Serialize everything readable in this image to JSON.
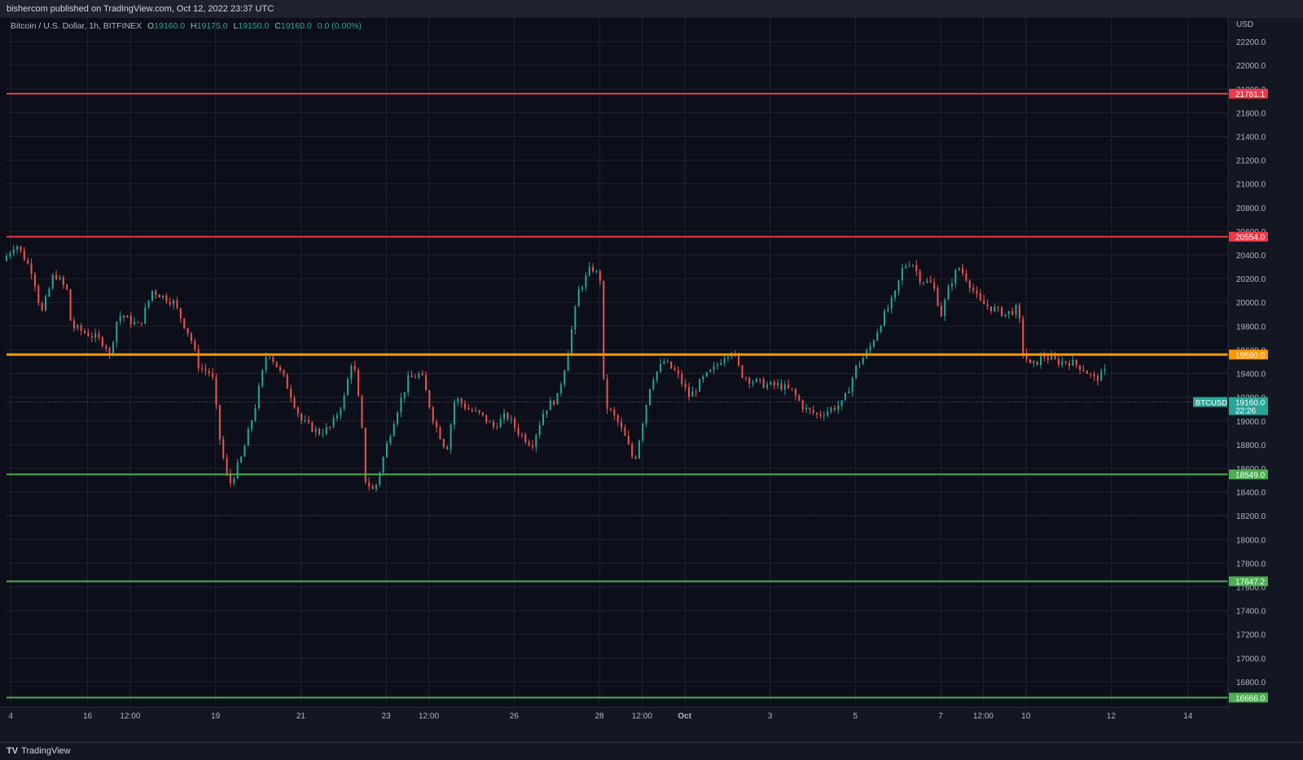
{
  "header": {
    "published": "bishercom published on TradingView.com, Oct 12, 2022 23:37 UTC"
  },
  "legend": {
    "symbol": "Bitcoin / U.S. Dollar, 1h, BITFINEX",
    "o_label": "O",
    "o_value": "19160.0",
    "h_label": "H",
    "h_value": "19175.0",
    "l_label": "L",
    "l_value": "19150.0",
    "c_label": "C",
    "c_value": "19160.0",
    "change": "0.0 (0.00%)"
  },
  "footer": {
    "brand": "TradingView",
    "logo": "TV"
  },
  "colors": {
    "background": "#131722",
    "grid": "#1f2330",
    "up": "#26a69a",
    "down": "#ef5350",
    "resistance": "#f23645",
    "pivot": "#ff9800",
    "support": "#4caf50",
    "last": "#26a69a"
  },
  "chart_data": {
    "type": "candlestick",
    "timeframe": "1h",
    "y_axis_unit": "USD",
    "ylim": [
      16600,
      22400
    ],
    "y_ticks": [
      16800,
      17000,
      17200,
      17400,
      17600,
      17800,
      18000,
      18200,
      18400,
      18600,
      18800,
      19000,
      19200,
      19400,
      19600,
      19800,
      20000,
      20200,
      20400,
      20600,
      20800,
      21000,
      21200,
      21400,
      21600,
      21800,
      22000,
      22200
    ],
    "x_ticks": [
      {
        "label": "4",
        "t": -0.2
      },
      {
        "label": "16",
        "t": 0.7
      },
      {
        "label": "12:00",
        "t": 1.2
      },
      {
        "label": "19",
        "t": 2.2
      },
      {
        "label": "21",
        "t": 3.2
      },
      {
        "label": "23",
        "t": 4.2
      },
      {
        "label": "12:00",
        "t": 4.7
      },
      {
        "label": "26",
        "t": 5.7
      },
      {
        "label": "28",
        "t": 6.7
      },
      {
        "label": "12:00",
        "t": 7.2
      },
      {
        "label": "Oct",
        "t": 7.7
      },
      {
        "label": "3",
        "t": 8.7
      },
      {
        "label": "5",
        "t": 9.7
      },
      {
        "label": "7",
        "t": 10.7
      },
      {
        "label": "12:00",
        "t": 11.2
      },
      {
        "label": "10",
        "t": 11.7
      },
      {
        "label": "12",
        "t": 12.7
      },
      {
        "label": "14",
        "t": 13.6
      }
    ],
    "x_domain": [
      -0.25,
      14.07
    ],
    "last_price": {
      "label": "BTCUSD",
      "price": 19160.0,
      "price_text": "19160.0",
      "countdown": "22:26",
      "t": 12.65
    },
    "horizontal_levels": [
      {
        "price": 21761.1,
        "text": "21761.1",
        "kind": "resistance"
      },
      {
        "price": 20554.0,
        "text": "20554.0",
        "kind": "resistance"
      },
      {
        "price": 19560.0,
        "text": "19560.0",
        "kind": "pivot"
      },
      {
        "price": 18549.0,
        "text": "18549.0",
        "kind": "support"
      },
      {
        "price": 17647.2,
        "text": "17647.2",
        "kind": "support"
      },
      {
        "price": 16666.0,
        "text": "16666.0",
        "kind": "support"
      }
    ],
    "dotted_levels": [
      18200
    ],
    "anchors": [
      [
        -0.25,
        20350
      ],
      [
        -0.1,
        20500
      ],
      [
        0.1,
        20250
      ],
      [
        0.2,
        19900
      ],
      [
        0.35,
        20250
      ],
      [
        0.5,
        20100
      ],
      [
        0.55,
        19800
      ],
      [
        0.7,
        19750
      ],
      [
        0.85,
        19700
      ],
      [
        0.95,
        19650
      ],
      [
        1.0,
        19550
      ],
      [
        1.1,
        19900
      ],
      [
        1.35,
        19800
      ],
      [
        1.5,
        20100
      ],
      [
        1.75,
        20000
      ],
      [
        1.95,
        19700
      ],
      [
        2.05,
        19450
      ],
      [
        2.2,
        19400
      ],
      [
        2.3,
        18800
      ],
      [
        2.4,
        18450
      ],
      [
        2.55,
        18700
      ],
      [
        2.7,
        19100
      ],
      [
        2.85,
        19600
      ],
      [
        3.05,
        19350
      ],
      [
        3.25,
        19000
      ],
      [
        3.45,
        18900
      ],
      [
        3.6,
        18950
      ],
      [
        3.75,
        19200
      ],
      [
        3.85,
        19550
      ],
      [
        3.95,
        19000
      ],
      [
        4.0,
        18500
      ],
      [
        4.1,
        18400
      ],
      [
        4.25,
        18800
      ],
      [
        4.35,
        19050
      ],
      [
        4.5,
        19350
      ],
      [
        4.65,
        19400
      ],
      [
        4.8,
        19000
      ],
      [
        4.95,
        18750
      ],
      [
        5.05,
        19200
      ],
      [
        5.2,
        19100
      ],
      [
        5.35,
        19050
      ],
      [
        5.5,
        18950
      ],
      [
        5.65,
        19050
      ],
      [
        5.8,
        18900
      ],
      [
        5.95,
        18800
      ],
      [
        6.1,
        19100
      ],
      [
        6.25,
        19200
      ],
      [
        6.35,
        19500
      ],
      [
        6.5,
        20100
      ],
      [
        6.65,
        20300
      ],
      [
        6.75,
        20200
      ],
      [
        6.8,
        19150
      ],
      [
        6.95,
        19000
      ],
      [
        7.05,
        18850
      ],
      [
        7.15,
        18650
      ],
      [
        7.25,
        19000
      ],
      [
        7.35,
        19350
      ],
      [
        7.5,
        19500
      ],
      [
        7.65,
        19400
      ],
      [
        7.8,
        19200
      ],
      [
        7.95,
        19350
      ],
      [
        8.1,
        19450
      ],
      [
        8.2,
        19550
      ],
      [
        8.3,
        19600
      ],
      [
        8.4,
        19400
      ],
      [
        8.5,
        19350
      ],
      [
        8.7,
        19300
      ],
      [
        8.85,
        19300
      ],
      [
        9.0,
        19250
      ],
      [
        9.15,
        19100
      ],
      [
        9.3,
        19050
      ],
      [
        9.45,
        19100
      ],
      [
        9.6,
        19150
      ],
      [
        9.75,
        19450
      ],
      [
        9.9,
        19600
      ],
      [
        10.05,
        19850
      ],
      [
        10.2,
        20050
      ],
      [
        10.3,
        20300
      ],
      [
        10.4,
        20350
      ],
      [
        10.5,
        20200
      ],
      [
        10.65,
        20150
      ],
      [
        10.75,
        19900
      ],
      [
        10.85,
        20150
      ],
      [
        10.95,
        20300
      ],
      [
        11.05,
        20200
      ],
      [
        11.2,
        20000
      ],
      [
        11.35,
        19950
      ],
      [
        11.5,
        19900
      ],
      [
        11.65,
        19950
      ],
      [
        11.7,
        19600
      ],
      [
        11.8,
        19450
      ],
      [
        11.95,
        19550
      ],
      [
        12.1,
        19500
      ],
      [
        12.25,
        19500
      ],
      [
        12.4,
        19450
      ],
      [
        12.55,
        19350
      ],
      [
        12.65,
        19400
      ],
      [
        12.8,
        19500
      ],
      [
        12.95,
        19500
      ],
      [
        13.1,
        19450
      ],
      [
        13.25,
        19350
      ],
      [
        13.35,
        19200
      ],
      [
        13.5,
        19050
      ],
      [
        13.6,
        19000
      ],
      [
        13.7,
        19100
      ],
      [
        13.8,
        19150
      ],
      [
        13.9,
        19050
      ],
      [
        14.0,
        19100
      ],
      [
        14.07,
        19160
      ]
    ]
  }
}
